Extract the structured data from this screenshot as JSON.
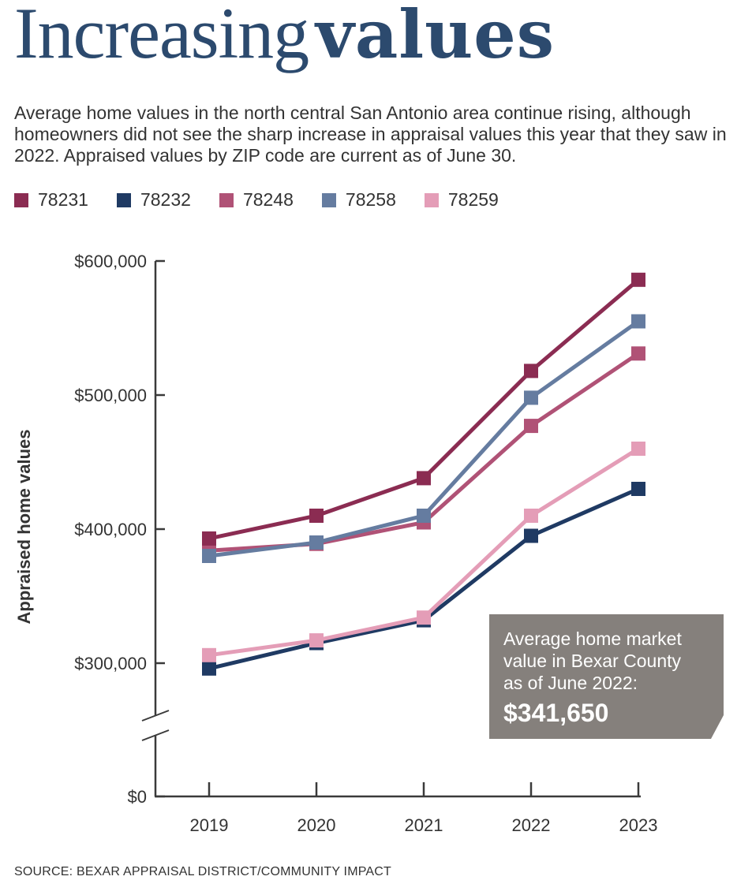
{
  "title": {
    "light": "Increasing",
    "bold": "values"
  },
  "subtitle": "Average home values in the north central San Antonio area continue rising, although homeowners did not see the sharp increase in appraisal values this year that they saw in 2022. Appraised values by ZIP code are current as of June 30.",
  "source": "SOURCE: BEXAR APPRAISAL DISTRICT/COMMUNITY IMPACT",
  "callout": {
    "text_lines": [
      "Average home market",
      "value in Bexar County",
      "as of June 2022:"
    ],
    "value": "$341,650"
  },
  "chart_data": {
    "type": "line",
    "x": [
      "2019",
      "2020",
      "2021",
      "2022",
      "2023"
    ],
    "ylabel": "Appraised home values",
    "yticks": [
      "$0",
      "$300,000",
      "$400,000",
      "$500,000",
      "$600,000"
    ],
    "y_axis_break": true,
    "legend_placement": "top",
    "series": [
      {
        "name": "78231",
        "color": "#8b2c52",
        "values": [
          393000,
          410000,
          438000,
          518000,
          586000
        ]
      },
      {
        "name": "78232",
        "color": "#1f3a63",
        "values": [
          296000,
          315000,
          332000,
          395000,
          430000
        ]
      },
      {
        "name": "78248",
        "color": "#b05276",
        "values": [
          384000,
          389000,
          405000,
          477000,
          531000
        ]
      },
      {
        "name": "78258",
        "color": "#657ca0",
        "values": [
          380000,
          390000,
          410000,
          498000,
          555000
        ]
      },
      {
        "name": "78259",
        "color": "#e49db7",
        "values": [
          306000,
          317000,
          334000,
          410000,
          460000
        ]
      }
    ]
  }
}
